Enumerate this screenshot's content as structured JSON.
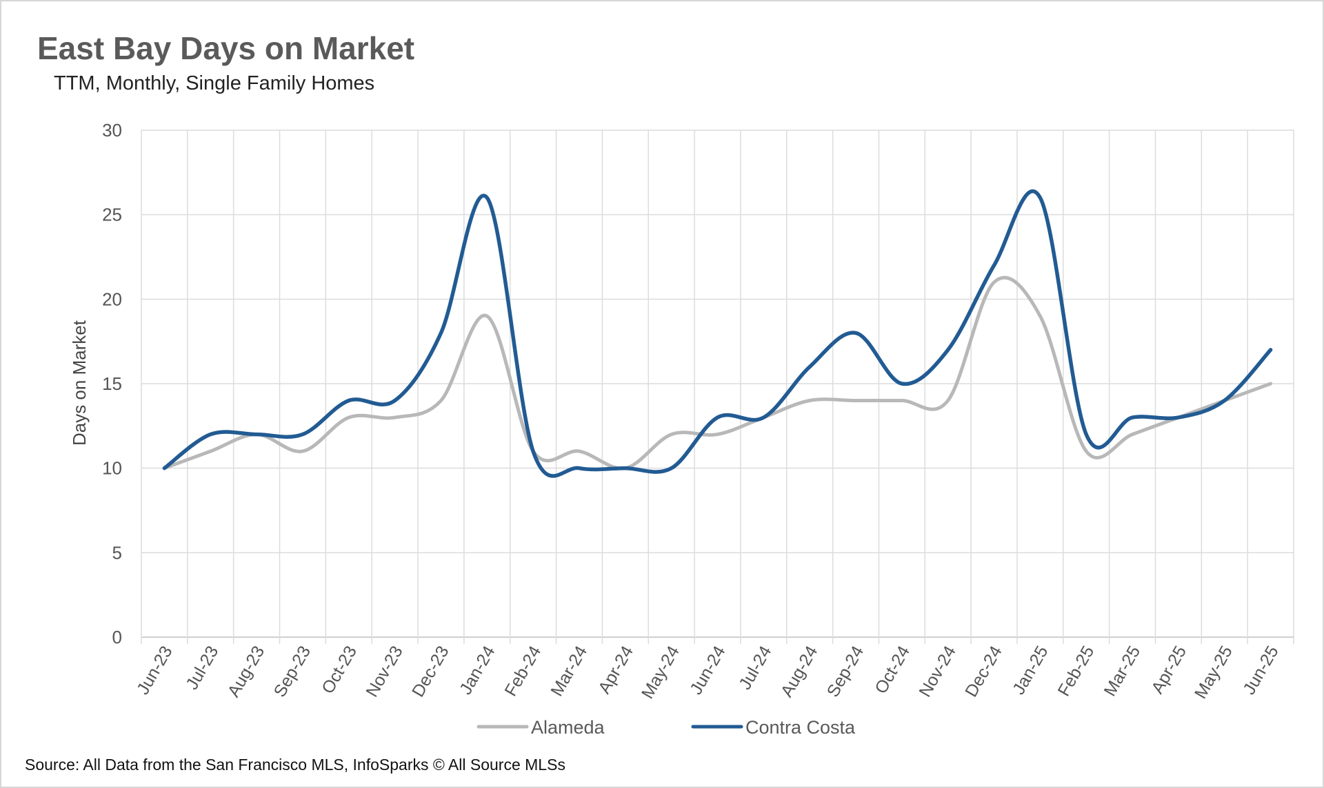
{
  "chart_data": {
    "type": "line",
    "title": "East Bay Days on Market",
    "subtitle": "TTM, Monthly, Single Family Homes",
    "xlabel": "",
    "ylabel": "Days on Market",
    "ylim": [
      0,
      30
    ],
    "yticks": [
      "0",
      "5",
      "10",
      "15",
      "20",
      "25",
      "30"
    ],
    "grid": true,
    "legend_position": "bottom",
    "categories": [
      "Jun-23",
      "Jul-23",
      "Aug-23",
      "Sep-23",
      "Oct-23",
      "Nov-23",
      "Dec-23",
      "Jan-24",
      "Feb-24",
      "Mar-24",
      "Apr-24",
      "May-24",
      "Jun-24",
      "Jul-24",
      "Aug-24",
      "Sep-24",
      "Oct-24",
      "Nov-24",
      "Dec-24",
      "Jan-25",
      "Feb-25",
      "Mar-25",
      "Apr-25",
      "May-25",
      "Jun-25"
    ],
    "series": [
      {
        "name": "Alameda",
        "color": "#b8b8b8",
        "values": [
          10,
          11,
          12,
          11,
          13,
          13,
          14,
          19,
          11,
          11,
          10,
          12,
          12,
          13,
          14,
          14,
          14,
          14,
          21,
          19,
          11,
          12,
          13,
          14,
          15
        ]
      },
      {
        "name": "Contra Costa",
        "color": "#225b93",
        "values": [
          10,
          12,
          12,
          12,
          14,
          14,
          18,
          26,
          11,
          10,
          10,
          10,
          13,
          13,
          16,
          18,
          15,
          17,
          22,
          26,
          12,
          13,
          13,
          14,
          17
        ]
      }
    ],
    "source": "Source: All Data from the San Francisco MLS, InfoSparks © All Source MLSs"
  }
}
